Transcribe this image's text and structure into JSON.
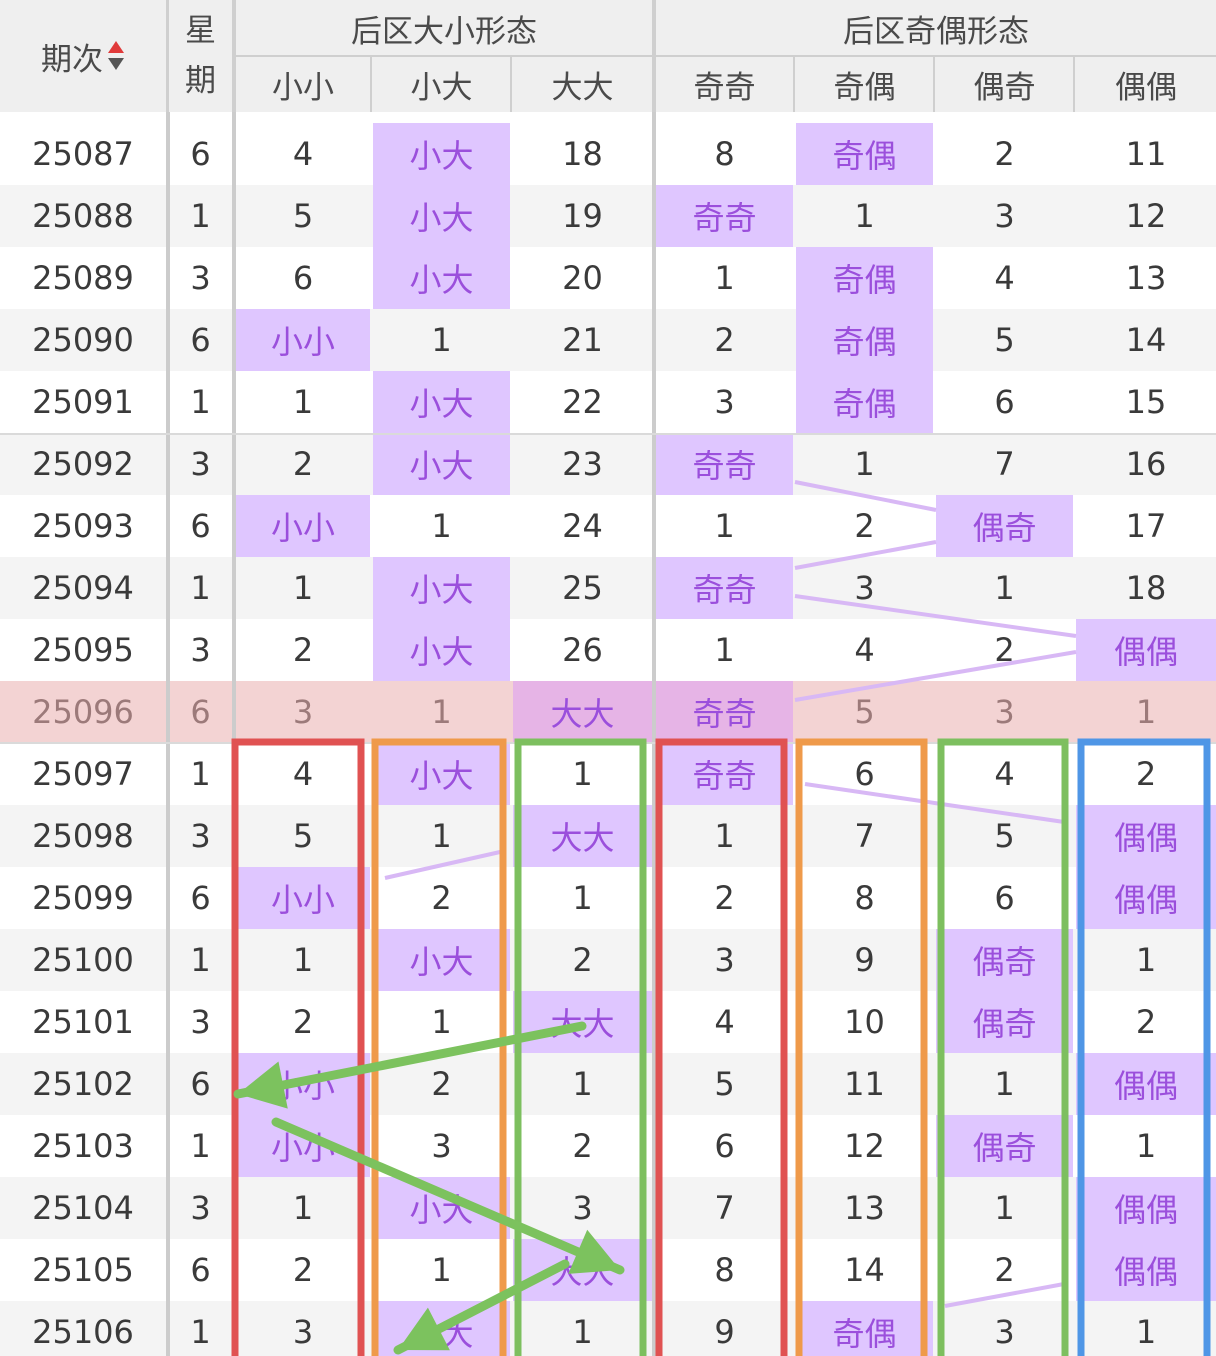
{
  "header": {
    "period_label": "期次",
    "weekday_label": [
      "星",
      "期"
    ],
    "group_size": "后区大小形态",
    "group_parity": "后区奇偶形态",
    "columns": [
      "小小",
      "小大",
      "大大",
      "奇奇",
      "奇偶",
      "偶奇",
      "偶偶"
    ]
  },
  "colors": {
    "highlight_bg": "#dfc6ff",
    "highlight_text": "#9b4fdc",
    "current_row_bg": "#f3d3d3",
    "box_red": "#e05252",
    "box_orange": "#ef9a4a",
    "box_green": "#7dbf5f",
    "box_blue": "#4f96e6",
    "arrow_green": "#7cc25e",
    "sort_up": "#e03a3a",
    "sort_down": "#555555"
  },
  "rows": [
    {
      "period": "25087",
      "weekday": "6",
      "cells": [
        "4",
        "小大",
        "18",
        "8",
        "奇偶",
        "2",
        "11"
      ],
      "hl": [
        1,
        4
      ]
    },
    {
      "period": "25088",
      "weekday": "1",
      "cells": [
        "5",
        "小大",
        "19",
        "奇奇",
        "1",
        "3",
        "12"
      ],
      "hl": [
        1,
        3
      ]
    },
    {
      "period": "25089",
      "weekday": "3",
      "cells": [
        "6",
        "小大",
        "20",
        "1",
        "奇偶",
        "4",
        "13"
      ],
      "hl": [
        1,
        4
      ]
    },
    {
      "period": "25090",
      "weekday": "6",
      "cells": [
        "小小",
        "1",
        "21",
        "2",
        "奇偶",
        "5",
        "14"
      ],
      "hl": [
        0,
        4
      ]
    },
    {
      "period": "25091",
      "weekday": "1",
      "cells": [
        "1",
        "小大",
        "22",
        "3",
        "奇偶",
        "6",
        "15"
      ],
      "hl": [
        1,
        4
      ]
    },
    {
      "period": "25092",
      "weekday": "3",
      "cells": [
        "2",
        "小大",
        "23",
        "奇奇",
        "1",
        "7",
        "16"
      ],
      "hl": [
        1,
        3
      ]
    },
    {
      "period": "25093",
      "weekday": "6",
      "cells": [
        "小小",
        "1",
        "24",
        "1",
        "2",
        "偶奇",
        "17"
      ],
      "hl": [
        0,
        5
      ]
    },
    {
      "period": "25094",
      "weekday": "1",
      "cells": [
        "1",
        "小大",
        "25",
        "奇奇",
        "3",
        "1",
        "18"
      ],
      "hl": [
        1,
        3
      ]
    },
    {
      "period": "25095",
      "weekday": "3",
      "cells": [
        "2",
        "小大",
        "26",
        "1",
        "4",
        "2",
        "偶偶"
      ],
      "hl": [
        1,
        6
      ]
    },
    {
      "period": "25096",
      "weekday": "6",
      "cells": [
        "3",
        "1",
        "大大",
        "奇奇",
        "5",
        "3",
        "1"
      ],
      "hl": [
        2,
        3
      ],
      "current": true
    },
    {
      "period": "25097",
      "weekday": "1",
      "cells": [
        "4",
        "小大",
        "1",
        "奇奇",
        "6",
        "4",
        "2"
      ],
      "hl": [
        1,
        3
      ]
    },
    {
      "period": "25098",
      "weekday": "3",
      "cells": [
        "5",
        "1",
        "大大",
        "1",
        "7",
        "5",
        "偶偶"
      ],
      "hl": [
        2,
        6
      ]
    },
    {
      "period": "25099",
      "weekday": "6",
      "cells": [
        "小小",
        "2",
        "1",
        "2",
        "8",
        "6",
        "偶偶"
      ],
      "hl": [
        0,
        6
      ]
    },
    {
      "period": "25100",
      "weekday": "1",
      "cells": [
        "1",
        "小大",
        "2",
        "3",
        "9",
        "偶奇",
        "1"
      ],
      "hl": [
        1,
        5
      ]
    },
    {
      "period": "25101",
      "weekday": "3",
      "cells": [
        "2",
        "1",
        "大大",
        "4",
        "10",
        "偶奇",
        "2"
      ],
      "hl": [
        2,
        5
      ]
    },
    {
      "period": "25102",
      "weekday": "6",
      "cells": [
        "小小",
        "2",
        "1",
        "5",
        "11",
        "1",
        "偶偶"
      ],
      "hl": [
        0,
        6
      ]
    },
    {
      "period": "25103",
      "weekday": "1",
      "cells": [
        "小小",
        "3",
        "2",
        "6",
        "12",
        "偶奇",
        "1"
      ],
      "hl": [
        0,
        5
      ]
    },
    {
      "period": "25104",
      "weekday": "3",
      "cells": [
        "1",
        "小大",
        "3",
        "7",
        "13",
        "1",
        "偶偶"
      ],
      "hl": [
        1,
        6
      ]
    },
    {
      "period": "25105",
      "weekday": "6",
      "cells": [
        "2",
        "1",
        "大大",
        "8",
        "14",
        "2",
        "偶偶"
      ],
      "hl": [
        2,
        6
      ]
    },
    {
      "period": "25106",
      "weekday": "1",
      "cells": [
        "3",
        "小大",
        "1",
        "9",
        "奇偶",
        "3",
        "1"
      ],
      "hl": [
        1,
        4
      ]
    }
  ]
}
